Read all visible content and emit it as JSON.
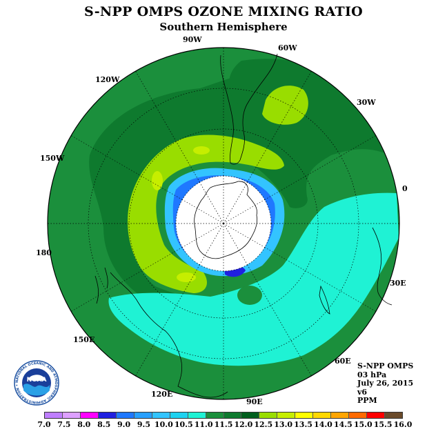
{
  "title": "S-NPP OMPS OZONE MIXING RATIO",
  "subtitle": "Southern Hemisphere",
  "longitude_labels": [
    {
      "id": "90W",
      "text": "90W"
    },
    {
      "id": "60W",
      "text": "60W"
    },
    {
      "id": "30W",
      "text": "30W"
    },
    {
      "id": "0",
      "text": "0"
    },
    {
      "id": "30E",
      "text": "30E"
    },
    {
      "id": "60E",
      "text": "60E"
    },
    {
      "id": "90E",
      "text": "90E"
    },
    {
      "id": "120E",
      "text": "120E"
    },
    {
      "id": "150E",
      "text": "150E"
    },
    {
      "id": "180",
      "text": "180"
    },
    {
      "id": "150W",
      "text": "150W"
    },
    {
      "id": "120W",
      "text": "120W"
    }
  ],
  "info": {
    "product": "S-NPP OMPS",
    "level": "03 hPa",
    "date": "July 26, 2015",
    "version": "v6",
    "units": "PPM"
  },
  "logo": {
    "text": "NOAA",
    "ring_text": "NATIONAL OCEANIC AND ATMOSPHERIC ADMINISTRATION • U.S. DEPARTMENT OF COMMERCE"
  },
  "colorbar": {
    "labels": [
      "7.0",
      "7.5",
      "8.0",
      "8.5",
      "9.0",
      "9.5",
      "10.0",
      "10.5",
      "11.0",
      "11.5",
      "12.0",
      "12.5",
      "13.0",
      "13.5",
      "14.0",
      "14.5",
      "15.0",
      "15.5",
      "16.0"
    ],
    "colors": [
      "#bf7fff",
      "#dda0ff",
      "#ff00ff",
      "#2020e0",
      "#1f78ff",
      "#28a0ff",
      "#33c4ff",
      "#1ed2f0",
      "#1ff2d4",
      "#1b8f3c",
      "#0e7a2e",
      "#005f1d",
      "#99dd00",
      "#c6ee00",
      "#ffff00",
      "#ffd800",
      "#ffa500",
      "#ff6a00",
      "#ff0000",
      "#6a4a2a"
    ]
  },
  "colors": {
    "background_field": "#1b8f3c",
    "dark_green": "#0e7a2e",
    "light_green": "#99dd00",
    "yellow_green": "#c6ee00",
    "cyan": "#1ff2d4",
    "land_outline": "#000000"
  }
}
